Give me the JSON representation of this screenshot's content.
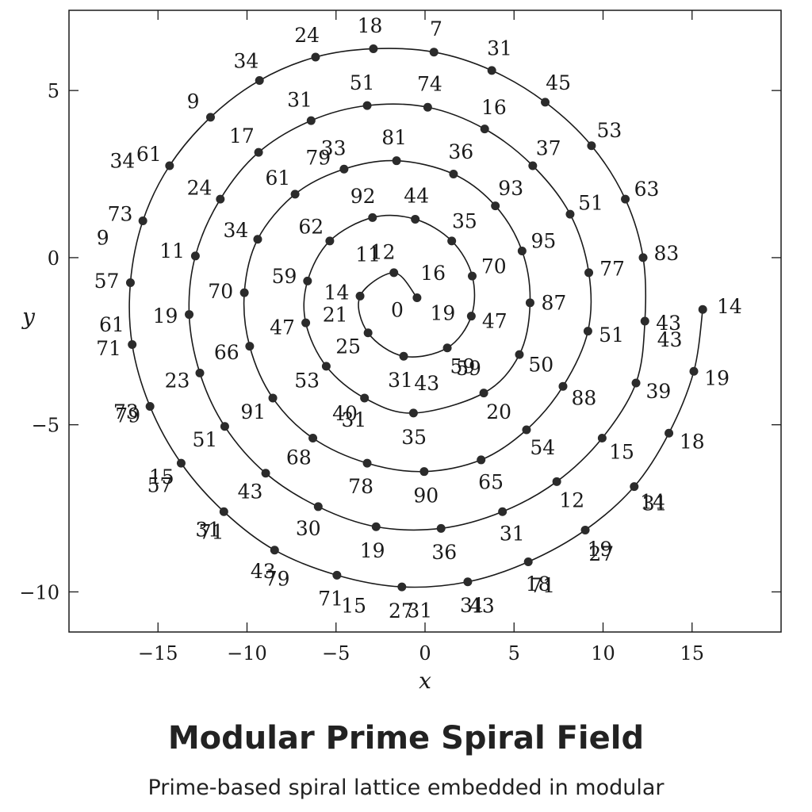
{
  "chart_data": {
    "type": "scatter",
    "title": "Modular Prime Spiral Field",
    "subtitle": "Prime-based spiral lattice embedded in modular",
    "xlabel": "x",
    "ylabel": "y",
    "xlim": [
      -20,
      20
    ],
    "ylim": [
      -11.2,
      7.4
    ],
    "x_ticks": [
      -15,
      -10,
      -5,
      0,
      5,
      10,
      15
    ],
    "y_ticks": [
      -10,
      -5,
      0,
      5
    ],
    "x_tick_labels": [
      "−15",
      "−10",
      "−5",
      "0",
      "5",
      "10",
      "15"
    ],
    "y_tick_labels": [
      "−10",
      "−5",
      "0",
      "5"
    ],
    "grid": false,
    "curve": "spiral through points in order",
    "points": [
      {
        "x": -0.45,
        "y": -1.2,
        "label": "0"
      },
      {
        "x": -1.75,
        "y": -0.45,
        "label": "12"
      },
      {
        "x": -3.65,
        "y": -1.15,
        "label": "14"
      },
      {
        "x": -3.2,
        "y": -2.25,
        "label": "25"
      },
      {
        "x": -1.2,
        "y": -2.95,
        "label": "31"
      },
      {
        "x": 1.25,
        "y": -2.7,
        "label": "59"
      },
      {
        "x": 2.6,
        "y": -1.75,
        "label": "47"
      },
      {
        "x": 2.65,
        "y": -0.55,
        "label": "70"
      },
      {
        "x": 1.5,
        "y": 0.5,
        "label": "35"
      },
      {
        "x": -0.55,
        "y": 1.15,
        "label": "44"
      },
      {
        "x": -2.95,
        "y": 1.2,
        "label": "92"
      },
      {
        "x": -5.35,
        "y": 0.5,
        "label": "62"
      },
      {
        "x": -6.6,
        "y": -0.7,
        "label": "59"
      },
      {
        "x": -6.7,
        "y": -1.95,
        "label": "47"
      },
      {
        "x": -5.55,
        "y": -3.25,
        "label": "53"
      },
      {
        "x": -3.4,
        "y": -4.2,
        "label": "31"
      },
      {
        "x": -0.65,
        "y": -4.65,
        "label": "35"
      },
      {
        "x": 3.3,
        "y": -4.05,
        "label": "20"
      },
      {
        "x": 5.3,
        "y": -2.9,
        "label": "50"
      },
      {
        "x": 5.9,
        "y": -1.35,
        "label": "87"
      },
      {
        "x": 5.45,
        "y": 0.2,
        "label": "95"
      },
      {
        "x": 3.95,
        "y": 1.55,
        "label": "93"
      },
      {
        "x": 1.6,
        "y": 2.5,
        "label": "36"
      },
      {
        "x": -1.6,
        "y": 2.9,
        "label": "81"
      },
      {
        "x": -4.55,
        "y": 2.65,
        "label": "33"
      },
      {
        "x": -7.3,
        "y": 1.9,
        "label": "61"
      },
      {
        "x": -9.4,
        "y": 0.55,
        "label": "34"
      },
      {
        "x": -10.15,
        "y": -1.05,
        "label": "70"
      },
      {
        "x": -9.85,
        "y": -2.65,
        "label": "66"
      },
      {
        "x": -8.55,
        "y": -4.2,
        "label": "91"
      },
      {
        "x": -6.3,
        "y": -5.4,
        "label": "68"
      },
      {
        "x": -3.25,
        "y": -6.15,
        "label": "78"
      },
      {
        "x": -0.05,
        "y": -6.4,
        "label": "90"
      },
      {
        "x": 3.15,
        "y": -6.05,
        "label": "65"
      },
      {
        "x": 5.7,
        "y": -5.15,
        "label": "54"
      },
      {
        "x": 7.75,
        "y": -3.85,
        "label": "88"
      },
      {
        "x": 9.15,
        "y": -2.2,
        "label": "51"
      },
      {
        "x": 9.2,
        "y": -0.45,
        "label": "77"
      },
      {
        "x": 8.15,
        "y": 1.3,
        "label": "51"
      },
      {
        "x": 6.05,
        "y": 2.75,
        "label": "37"
      },
      {
        "x": 3.35,
        "y": 3.85,
        "label": "16"
      },
      {
        "x": 0.15,
        "y": 4.5,
        "label": "74"
      },
      {
        "x": -3.25,
        "y": 4.55,
        "label": "51"
      },
      {
        "x": -6.4,
        "y": 4.1,
        "label": "31"
      },
      {
        "x": -9.35,
        "y": 3.15,
        "label": "17"
      },
      {
        "x": -11.5,
        "y": 1.75,
        "label": "24"
      },
      {
        "x": -12.9,
        "y": 0.05,
        "label": "11"
      },
      {
        "x": -13.25,
        "y": -1.7,
        "label": "19"
      },
      {
        "x": -12.65,
        "y": -3.45,
        "label": "23"
      },
      {
        "x": -11.25,
        "y": -5.05,
        "label": "51"
      },
      {
        "x": -8.95,
        "y": -6.45,
        "label": "43"
      },
      {
        "x": -6.0,
        "y": -7.45,
        "label": "30"
      },
      {
        "x": -2.75,
        "y": -8.05,
        "label": "19"
      },
      {
        "x": 0.9,
        "y": -8.1,
        "label": "36"
      },
      {
        "x": 4.35,
        "y": -7.6,
        "label": "31"
      },
      {
        "x": 7.4,
        "y": -6.7,
        "label": "12"
      },
      {
        "x": 9.95,
        "y": -5.4,
        "label": "15"
      },
      {
        "x": 11.85,
        "y": -3.75,
        "label": "39"
      },
      {
        "x": 12.35,
        "y": -1.9,
        "label": "43"
      },
      {
        "x": 12.25,
        "y": 0.0,
        "label": "83"
      },
      {
        "x": 11.25,
        "y": 1.75,
        "label": "63"
      },
      {
        "x": 9.35,
        "y": 3.35,
        "label": "53"
      },
      {
        "x": 6.75,
        "y": 4.65,
        "label": "45"
      },
      {
        "x": 3.75,
        "y": 5.6,
        "label": "31"
      },
      {
        "x": 0.5,
        "y": 6.15,
        "label": "7"
      },
      {
        "x": -2.9,
        "y": 6.25,
        "label": "18"
      },
      {
        "x": -6.15,
        "y": 6.0,
        "label": "24"
      },
      {
        "x": -9.3,
        "y": 5.3,
        "label": "34"
      },
      {
        "x": -12.05,
        "y": 4.2,
        "label": "9"
      },
      {
        "x": -14.35,
        "y": 2.75,
        "label": "61"
      },
      {
        "x": -15.85,
        "y": 1.1,
        "label": "73"
      },
      {
        "x": -16.55,
        "y": -0.75,
        "label": "57"
      },
      {
        "x": -16.45,
        "y": -2.6,
        "label": "71"
      },
      {
        "x": -15.45,
        "y": -4.45,
        "label": "79"
      },
      {
        "x": -13.7,
        "y": -6.15,
        "label": "15"
      },
      {
        "x": -11.3,
        "y": -7.6,
        "label": "31"
      },
      {
        "x": -8.45,
        "y": -8.75,
        "label": "43"
      },
      {
        "x": -4.95,
        "y": -9.5,
        "label": "71"
      },
      {
        "x": -1.3,
        "y": -9.85,
        "label": "27"
      },
      {
        "x": 2.4,
        "y": -9.7,
        "label": "31"
      },
      {
        "x": 5.8,
        "y": -9.1,
        "label": "18"
      },
      {
        "x": 9.0,
        "y": -8.15,
        "label": "19"
      },
      {
        "x": 11.75,
        "y": -6.85,
        "label": "14"
      },
      {
        "x": 13.7,
        "y": -5.25,
        "label": ""
      },
      {
        "x": 15.1,
        "y": -3.4,
        "label": ""
      },
      {
        "x": 15.6,
        "y": -1.55,
        "label": ""
      }
    ],
    "extra_labels": [
      {
        "x": -3.2,
        "y": 0.1,
        "label": "11"
      },
      {
        "x": 0.45,
        "y": -0.45,
        "label": "16"
      },
      {
        "x": -5.05,
        "y": -1.7,
        "label": "21"
      },
      {
        "x": 1.0,
        "y": -1.65,
        "label": "19"
      },
      {
        "x": -4.5,
        "y": -4.65,
        "label": "40"
      },
      {
        "x": 2.45,
        "y": -3.3,
        "label": "59"
      },
      {
        "x": 0.1,
        "y": -3.75,
        "label": "43"
      },
      {
        "x": -4.5,
        "y": -4.65,
        "label": ""
      },
      {
        "x": 2.1,
        "y": -5.15,
        "label": ""
      },
      {
        "x": -6.0,
        "y": 3.0,
        "label": "79"
      },
      {
        "x": -11.4,
        "y": 3.0,
        "label": ""
      },
      {
        "x": -18.1,
        "y": 0.6,
        "label": "9"
      },
      {
        "x": -17.0,
        "y": 2.9,
        "label": "34"
      },
      {
        "x": -17.6,
        "y": -2.0,
        "label": "61"
      },
      {
        "x": -16.8,
        "y": -4.6,
        "label": "73"
      },
      {
        "x": -14.9,
        "y": -6.8,
        "label": "57"
      },
      {
        "x": -12.0,
        "y": -8.2,
        "label": "71"
      },
      {
        "x": -8.3,
        "y": -9.6,
        "label": "79"
      },
      {
        "x": -4.0,
        "y": -10.4,
        "label": "15"
      },
      {
        "x": -0.3,
        "y": -10.55,
        "label": "31"
      },
      {
        "x": 3.2,
        "y": -10.4,
        "label": "43"
      },
      {
        "x": 6.6,
        "y": -9.8,
        "label": "71"
      },
      {
        "x": 9.9,
        "y": -8.85,
        "label": "27"
      },
      {
        "x": 12.9,
        "y": -7.35,
        "label": "31"
      },
      {
        "x": 15.0,
        "y": -5.5,
        "label": "18"
      },
      {
        "x": 16.4,
        "y": -3.6,
        "label": "19"
      },
      {
        "x": 17.1,
        "y": -1.45,
        "label": "14"
      },
      {
        "x": 13.75,
        "y": -2.45,
        "label": "43"
      },
      {
        "x": 14.05,
        "y": 0.15,
        "label": ""
      },
      {
        "x": 12.1,
        "y": -4.25,
        "label": ""
      },
      {
        "x": 10.5,
        "y": -0.45,
        "label": ""
      },
      {
        "x": 9.4,
        "y": -2.95,
        "label": ""
      }
    ]
  }
}
